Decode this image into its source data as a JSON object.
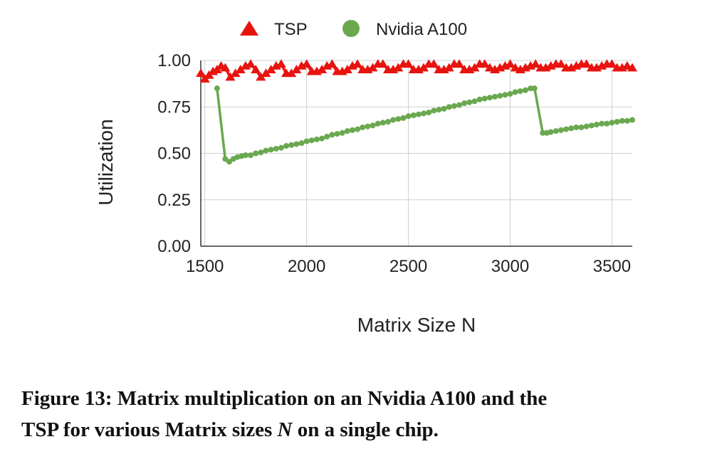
{
  "chart_data": {
    "type": "line",
    "xlabel": "Matrix Size N",
    "ylabel": "Utilization",
    "xlim": [
      1480,
      3600
    ],
    "ylim": [
      0,
      1.0
    ],
    "xticks": [
      "1500",
      "2000",
      "2500",
      "3000",
      "3500"
    ],
    "xtick_values": [
      1500,
      2000,
      2500,
      3000,
      3500
    ],
    "yticks": [
      "0.00",
      "0.25",
      "0.50",
      "0.75",
      "1.00"
    ],
    "ytick_values": [
      0,
      0.25,
      0.5,
      0.75,
      1.0
    ],
    "grid": true,
    "legend_position": "top",
    "series": [
      {
        "name": "TSP",
        "color": "#e8130f",
        "marker": "triangle",
        "x": [
          1480,
          1500,
          1520,
          1540,
          1560,
          1580,
          1600,
          1625,
          1650,
          1675,
          1700,
          1725,
          1750,
          1775,
          1800,
          1825,
          1850,
          1875,
          1900,
          1925,
          1950,
          1975,
          2000,
          2025,
          2050,
          2075,
          2100,
          2125,
          2150,
          2175,
          2200,
          2225,
          2250,
          2275,
          2300,
          2325,
          2350,
          2375,
          2400,
          2425,
          2450,
          2475,
          2500,
          2525,
          2550,
          2575,
          2600,
          2625,
          2650,
          2675,
          2700,
          2725,
          2750,
          2775,
          2800,
          2825,
          2850,
          2875,
          2900,
          2925,
          2950,
          2975,
          3000,
          3025,
          3050,
          3075,
          3100,
          3125,
          3150,
          3175,
          3200,
          3225,
          3250,
          3275,
          3300,
          3325,
          3350,
          3375,
          3400,
          3425,
          3450,
          3475,
          3500,
          3525,
          3550,
          3575,
          3600
        ],
        "y": [
          0.93,
          0.9,
          0.92,
          0.94,
          0.95,
          0.97,
          0.96,
          0.91,
          0.93,
          0.95,
          0.97,
          0.98,
          0.95,
          0.91,
          0.93,
          0.95,
          0.97,
          0.98,
          0.93,
          0.93,
          0.95,
          0.97,
          0.98,
          0.94,
          0.94,
          0.95,
          0.97,
          0.98,
          0.94,
          0.94,
          0.95,
          0.97,
          0.98,
          0.95,
          0.95,
          0.96,
          0.98,
          0.98,
          0.95,
          0.95,
          0.96,
          0.98,
          0.98,
          0.95,
          0.95,
          0.96,
          0.98,
          0.98,
          0.95,
          0.95,
          0.96,
          0.98,
          0.98,
          0.95,
          0.95,
          0.96,
          0.98,
          0.98,
          0.96,
          0.95,
          0.96,
          0.97,
          0.98,
          0.96,
          0.95,
          0.96,
          0.97,
          0.98,
          0.96,
          0.96,
          0.97,
          0.98,
          0.98,
          0.96,
          0.96,
          0.97,
          0.98,
          0.98,
          0.96,
          0.96,
          0.97,
          0.98,
          0.98,
          0.96,
          0.96,
          0.97,
          0.96
        ]
      },
      {
        "name": "Nvidia A100",
        "color": "#6aa84f",
        "marker": "circle",
        "x": [
          1560,
          1600,
          1620,
          1640,
          1660,
          1680,
          1700,
          1725,
          1750,
          1775,
          1800,
          1825,
          1850,
          1875,
          1900,
          1925,
          1950,
          1975,
          2000,
          2025,
          2050,
          2075,
          2100,
          2125,
          2150,
          2175,
          2200,
          2225,
          2250,
          2275,
          2300,
          2325,
          2350,
          2375,
          2400,
          2425,
          2450,
          2475,
          2500,
          2525,
          2550,
          2575,
          2600,
          2625,
          2650,
          2675,
          2700,
          2725,
          2750,
          2775,
          2800,
          2825,
          2850,
          2875,
          2900,
          2925,
          2950,
          2975,
          3000,
          3025,
          3050,
          3075,
          3100,
          3120,
          3160,
          3180,
          3200,
          3225,
          3250,
          3275,
          3300,
          3325,
          3350,
          3375,
          3400,
          3425,
          3450,
          3475,
          3500,
          3525,
          3550,
          3575,
          3600
        ],
        "y": [
          0.85,
          0.47,
          0.455,
          0.47,
          0.48,
          0.485,
          0.49,
          0.49,
          0.5,
          0.505,
          0.515,
          0.52,
          0.525,
          0.53,
          0.54,
          0.545,
          0.55,
          0.555,
          0.565,
          0.57,
          0.575,
          0.58,
          0.59,
          0.6,
          0.605,
          0.61,
          0.62,
          0.625,
          0.63,
          0.64,
          0.645,
          0.65,
          0.66,
          0.665,
          0.67,
          0.68,
          0.685,
          0.69,
          0.7,
          0.705,
          0.71,
          0.715,
          0.72,
          0.73,
          0.735,
          0.74,
          0.75,
          0.755,
          0.76,
          0.77,
          0.775,
          0.78,
          0.79,
          0.795,
          0.8,
          0.805,
          0.81,
          0.815,
          0.82,
          0.83,
          0.835,
          0.84,
          0.85,
          0.85,
          0.61,
          0.61,
          0.615,
          0.62,
          0.625,
          0.63,
          0.635,
          0.64,
          0.64,
          0.645,
          0.65,
          0.655,
          0.66,
          0.66,
          0.665,
          0.67,
          0.675,
          0.675,
          0.68
        ]
      }
    ]
  },
  "caption": {
    "line1": "Figure 13: Matrix multiplication on an Nvidia A100 and the",
    "line2_pre": "TSP for various Matrix sizes ",
    "line2_var": "N",
    "line2_post": " on a single chip."
  }
}
